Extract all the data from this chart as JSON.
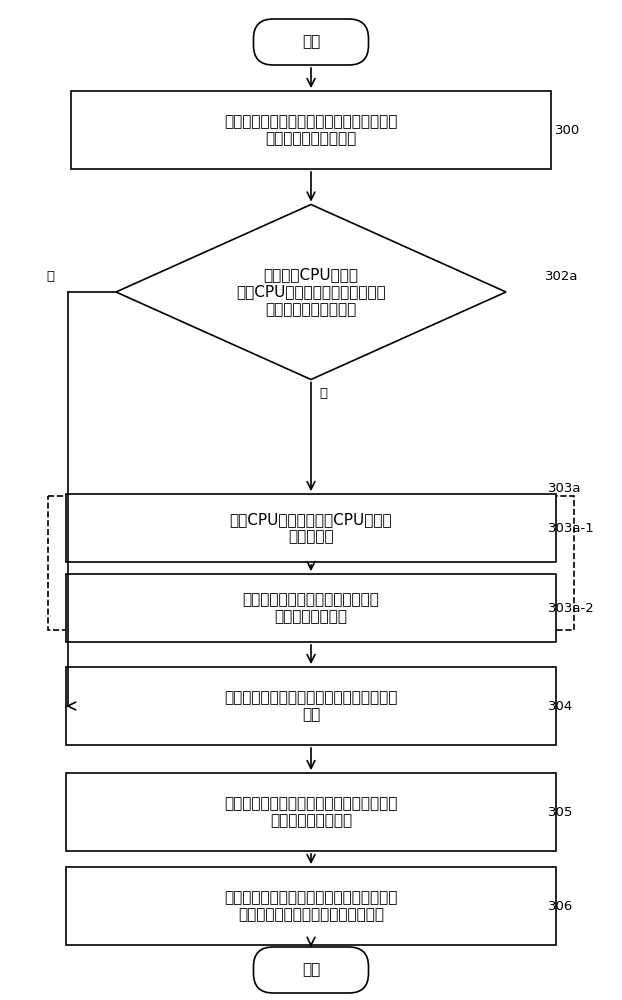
{
  "bg_color": "#ffffff",
  "line_color": "#000000",
  "text_color": "#000000",
  "font_size_main": 11,
  "font_size_label": 9.5,
  "start_text": "开始",
  "end_text": "结束",
  "box300_text": "基于每个存储节点的存储空间剩余率确定每\n个存储节点的基础权重",
  "box300_label": "300",
  "diamond_text": "判断是否CPU占用率\n大于CPU占用率阈值，且内存占用\n率小于内存占用率阈值",
  "diamond_label": "302a",
  "box303a1_text": "计算CPU占用率阈值与CPU占用率\n之间的比值",
  "box303a1_label": "303a-1",
  "box303a2_text": "将比值作为修正参数对存储节点的\n基础权重进行修改",
  "box303a2_label": "303a-2",
  "dashed_label": "303a",
  "box304_text": "将存储节点的基础权重作为存储节点的目标\n权重",
  "box304_label": "304",
  "box305_text": "根据全部存储节点的目标权重，构成存储节\n点的优先级区间序列",
  "box305_label": "305",
  "box306_text": "获取优先级区间序列中优先级最高的区间对\n应的存储节点，作为数据写入的节点",
  "box306_label": "306",
  "yes_text": "是",
  "no_text": "否"
}
